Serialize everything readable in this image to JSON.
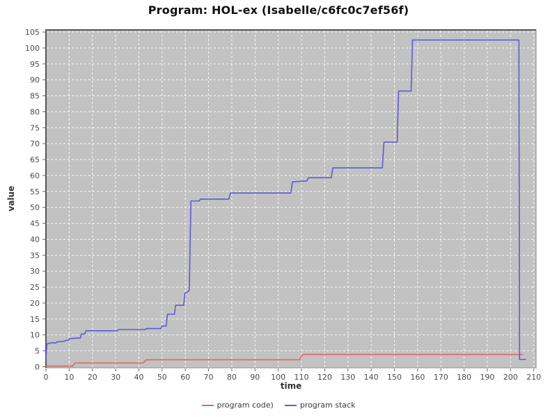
{
  "colors": {
    "page_bg": "#ffffff",
    "plot_bg": "#c2c2c2",
    "grid": "#ffffff",
    "plot_border": "#8f8f8f",
    "plot_border_dark": "#565656",
    "tick": "#666666",
    "tick_text": "#4a4a4a",
    "title_text": "#111111",
    "axis_label_text": "#333333",
    "legend_text": "#3a3a3a"
  },
  "chart_data": {
    "type": "line",
    "title": "Program: HOL-ex (Isabelle/c6fc0c7ef56f)",
    "xlabel": "time",
    "ylabel": "value",
    "xlim": [
      0,
      211
    ],
    "ylim": [
      0,
      105
    ],
    "xticks": [
      0,
      10,
      20,
      30,
      40,
      50,
      60,
      70,
      80,
      90,
      100,
      110,
      120,
      130,
      140,
      150,
      160,
      170,
      180,
      190,
      200,
      210
    ],
    "yticks": [
      0,
      5,
      10,
      15,
      20,
      25,
      30,
      35,
      40,
      45,
      50,
      55,
      60,
      65,
      70,
      75,
      80,
      85,
      90,
      95,
      100,
      105
    ],
    "grid": true,
    "grid_style": "white dashed",
    "legend_position": "bottom",
    "series": [
      {
        "name": "program code)",
        "color": "#dd6565",
        "points": [
          [
            0,
            0.2
          ],
          [
            11.4,
            0.2
          ],
          [
            12.6,
            1.2
          ],
          [
            41.8,
            1.2
          ],
          [
            43.2,
            2.2
          ],
          [
            109.2,
            2.2
          ],
          [
            110.6,
            3.9
          ],
          [
            205,
            3.9
          ]
        ]
      },
      {
        "name": "program stack",
        "color": "#5b5bdb",
        "points": [
          [
            0,
            2.3
          ],
          [
            0.4,
            7.2
          ],
          [
            2,
            7.5
          ],
          [
            4.3,
            7.5
          ],
          [
            4.7,
            7.8
          ],
          [
            8,
            8.0
          ],
          [
            8.5,
            8.3
          ],
          [
            9.8,
            8.3
          ],
          [
            10.2,
            8.8
          ],
          [
            12.8,
            9.0
          ],
          [
            14.8,
            9.0
          ],
          [
            15.2,
            10.3
          ],
          [
            16.8,
            10.3
          ],
          [
            17.2,
            11.3
          ],
          [
            30.8,
            11.3
          ],
          [
            31.2,
            11.7
          ],
          [
            42.8,
            11.7
          ],
          [
            43.2,
            12.0
          ],
          [
            49.6,
            12.0
          ],
          [
            50.0,
            12.8
          ],
          [
            51.8,
            12.8
          ],
          [
            52.3,
            16.5
          ],
          [
            55.3,
            16.5
          ],
          [
            55.8,
            19.3
          ],
          [
            59.3,
            19.3
          ],
          [
            59.8,
            23.0
          ],
          [
            61.0,
            23.5
          ],
          [
            61.7,
            24.0
          ],
          [
            62.4,
            52.0
          ],
          [
            66.0,
            52.0
          ],
          [
            66.5,
            52.6
          ],
          [
            78.8,
            52.6
          ],
          [
            79.4,
            54.5
          ],
          [
            105.4,
            54.5
          ],
          [
            106.1,
            58.0
          ],
          [
            112.4,
            58.3
          ],
          [
            113.0,
            59.3
          ],
          [
            122.8,
            59.3
          ],
          [
            123.5,
            62.4
          ],
          [
            144.8,
            62.4
          ],
          [
            145.5,
            70.5
          ],
          [
            151.2,
            70.5
          ],
          [
            151.8,
            86.5
          ],
          [
            157.2,
            86.5
          ],
          [
            157.8,
            102.5
          ],
          [
            203.6,
            102.5
          ],
          [
            203.9,
            2.3
          ],
          [
            206.5,
            2.3
          ]
        ]
      }
    ]
  }
}
